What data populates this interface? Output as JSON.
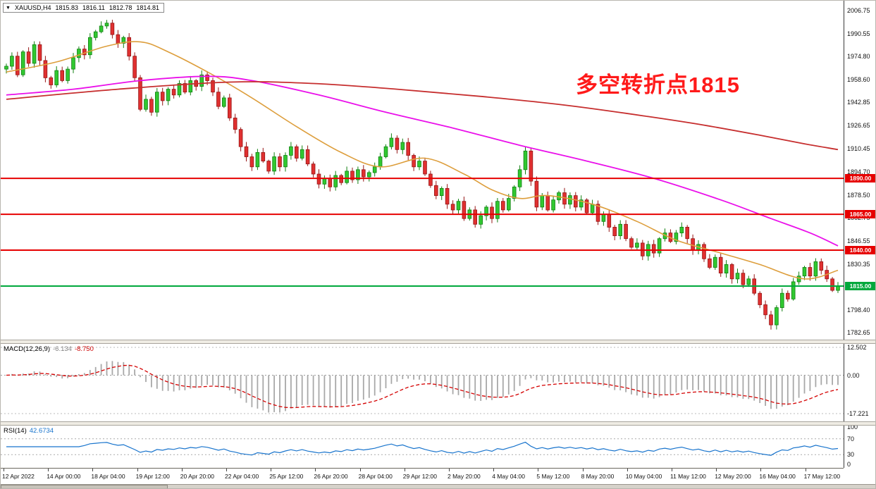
{
  "header": {
    "symbol": "XAUUSD,H4",
    "open": "1815.83",
    "high": "1816.11",
    "low": "1812.78",
    "close": "1814.81"
  },
  "annotation": {
    "text": "多空转折点1815",
    "color": "#FF1A1A"
  },
  "colors": {
    "bull_fill": "#31C831",
    "bull_stroke": "#118011",
    "bear_fill": "#E03030",
    "bear_stroke": "#961616"
  },
  "chart_data": [
    {
      "type": "candlestick",
      "title": "XAUUSD,H4",
      "ohlc_header": {
        "open": 1815.83,
        "high": 1816.11,
        "low": 1812.78,
        "close": 1814.81
      },
      "ylim": [
        1782.65,
        2006.75
      ],
      "y_ticks": [
        "2006.75",
        "1990.55",
        "1974.80",
        "1958.60",
        "1942.85",
        "1926.65",
        "1910.45",
        "1894.70",
        "1878.50",
        "1862.75",
        "1846.55",
        "1830.35",
        "1814.60",
        "1798.40",
        "1782.65"
      ],
      "x_ticks": [
        "12 Apr 2022",
        "14 Apr 00:00",
        "18 Apr 04:00",
        "19 Apr 12:00",
        "20 Apr 20:00",
        "22 Apr 04:00",
        "25 Apr 12:00",
        "26 Apr 20:00",
        "28 Apr 04:00",
        "29 Apr 12:00",
        "2 May 20:00",
        "4 May 04:00",
        "5 May 12:00",
        "8 May 20:00",
        "10 May 04:00",
        "11 May 12:00",
        "12 May 20:00",
        "16 May 04:00",
        "17 May 12:00"
      ],
      "first_open": 1966,
      "closes": [
        1968,
        1975,
        1962,
        1978,
        1970,
        1983,
        1972,
        1960,
        1955,
        1965,
        1958,
        1966,
        1974,
        1980,
        1976,
        1988,
        1992,
        1996,
        1998,
        1990,
        1984,
        1988,
        1975,
        1960,
        1938,
        1945,
        1936,
        1950,
        1944,
        1952,
        1948,
        1956,
        1950,
        1958,
        1954,
        1962,
        1958,
        1950,
        1940,
        1946,
        1932,
        1924,
        1912,
        1905,
        1898,
        1908,
        1902,
        1895,
        1905,
        1898,
        1906,
        1912,
        1904,
        1910,
        1900,
        1893,
        1886,
        1890,
        1884,
        1892,
        1887,
        1895,
        1889,
        1896,
        1891,
        1894,
        1898,
        1905,
        1912,
        1918,
        1910,
        1915,
        1906,
        1898,
        1902,
        1893,
        1885,
        1878,
        1883,
        1872,
        1868,
        1874,
        1862,
        1868,
        1858,
        1864,
        1870,
        1862,
        1874,
        1868,
        1876,
        1884,
        1896,
        1909,
        1888,
        1870,
        1878,
        1868,
        1875,
        1880,
        1872,
        1878,
        1870,
        1875,
        1866,
        1872,
        1860,
        1865,
        1856,
        1850,
        1858,
        1848,
        1842,
        1845,
        1836,
        1844,
        1838,
        1848,
        1852,
        1846,
        1852,
        1856,
        1848,
        1840,
        1844,
        1834,
        1828,
        1835,
        1824,
        1830,
        1820,
        1824,
        1816,
        1820,
        1810,
        1802,
        1795,
        1788,
        1800,
        1810,
        1806,
        1818,
        1822,
        1828,
        1822,
        1832,
        1826,
        1820,
        1812,
        1814.81
      ],
      "hlines": [
        {
          "price": 1890.0,
          "label": "1890.00",
          "color": "#E60000"
        },
        {
          "price": 1865.0,
          "label": "1865.00",
          "color": "#E60000"
        },
        {
          "price": 1840.0,
          "label": "1840.00",
          "color": "#E60000"
        },
        {
          "price": 1815.0,
          "label": "1815.00",
          "color": "#00A83C"
        }
      ],
      "ma_lines": [
        {
          "name": "ma-fast-orange",
          "color": "#DD9E3C",
          "width": 1.6,
          "points": [
            [
              0,
              1964
            ],
            [
              9,
              1971
            ],
            [
              18,
              1982
            ],
            [
              24,
              1985
            ],
            [
              29,
              1978
            ],
            [
              37,
              1962
            ],
            [
              44,
              1946
            ],
            [
              52,
              1926
            ],
            [
              60,
              1908
            ],
            [
              67,
              1898
            ],
            [
              75,
              1904
            ],
            [
              82,
              1893
            ],
            [
              87,
              1882
            ],
            [
              92,
              1876
            ],
            [
              97,
              1878
            ],
            [
              105,
              1872
            ],
            [
              113,
              1860
            ],
            [
              120,
              1847
            ],
            [
              128,
              1838
            ],
            [
              135,
              1830
            ],
            [
              143,
              1820
            ],
            [
              149,
              1826
            ]
          ]
        },
        {
          "name": "ma-mid-magenta",
          "color": "#EA10EA",
          "width": 1.8,
          "points": [
            [
              0,
              1948
            ],
            [
              12,
              1952
            ],
            [
              24,
              1958
            ],
            [
              36,
              1961
            ],
            [
              44,
              1958
            ],
            [
              56,
              1948
            ],
            [
              68,
              1936
            ],
            [
              80,
              1925
            ],
            [
              92,
              1913
            ],
            [
              104,
              1902
            ],
            [
              116,
              1890
            ],
            [
              128,
              1875
            ],
            [
              137,
              1862
            ],
            [
              144,
              1852
            ],
            [
              149,
              1843
            ]
          ]
        },
        {
          "name": "ma-slow-darkred",
          "color": "#C62E2E",
          "width": 1.8,
          "points": [
            [
              0,
              1945
            ],
            [
              20,
              1952
            ],
            [
              40,
              1957
            ],
            [
              55,
              1956
            ],
            [
              70,
              1952
            ],
            [
              85,
              1947
            ],
            [
              100,
              1941
            ],
            [
              115,
              1933
            ],
            [
              125,
              1927
            ],
            [
              135,
              1920
            ],
            [
              143,
              1914
            ],
            [
              149,
              1910
            ]
          ]
        }
      ]
    },
    {
      "type": "macd",
      "label": "MACD(12,26,9)",
      "value_main": "-6.134",
      "value_signal": "-8.750",
      "params": [
        12,
        26,
        9
      ],
      "ylim": [
        -17.221,
        12.502
      ],
      "y_ticks": [
        "12.502",
        "0.00",
        "-17.221"
      ],
      "colors": {
        "histogram": "#A8A8A8",
        "signal": "#D40000"
      }
    },
    {
      "type": "rsi",
      "label": "RSI(14)",
      "value": "42.6734",
      "period": 14,
      "ylim": [
        0,
        100
      ],
      "y_ticks": [
        100,
        70,
        30,
        0
      ],
      "levels": [
        70,
        30
      ],
      "color": "#1874CD"
    }
  ]
}
